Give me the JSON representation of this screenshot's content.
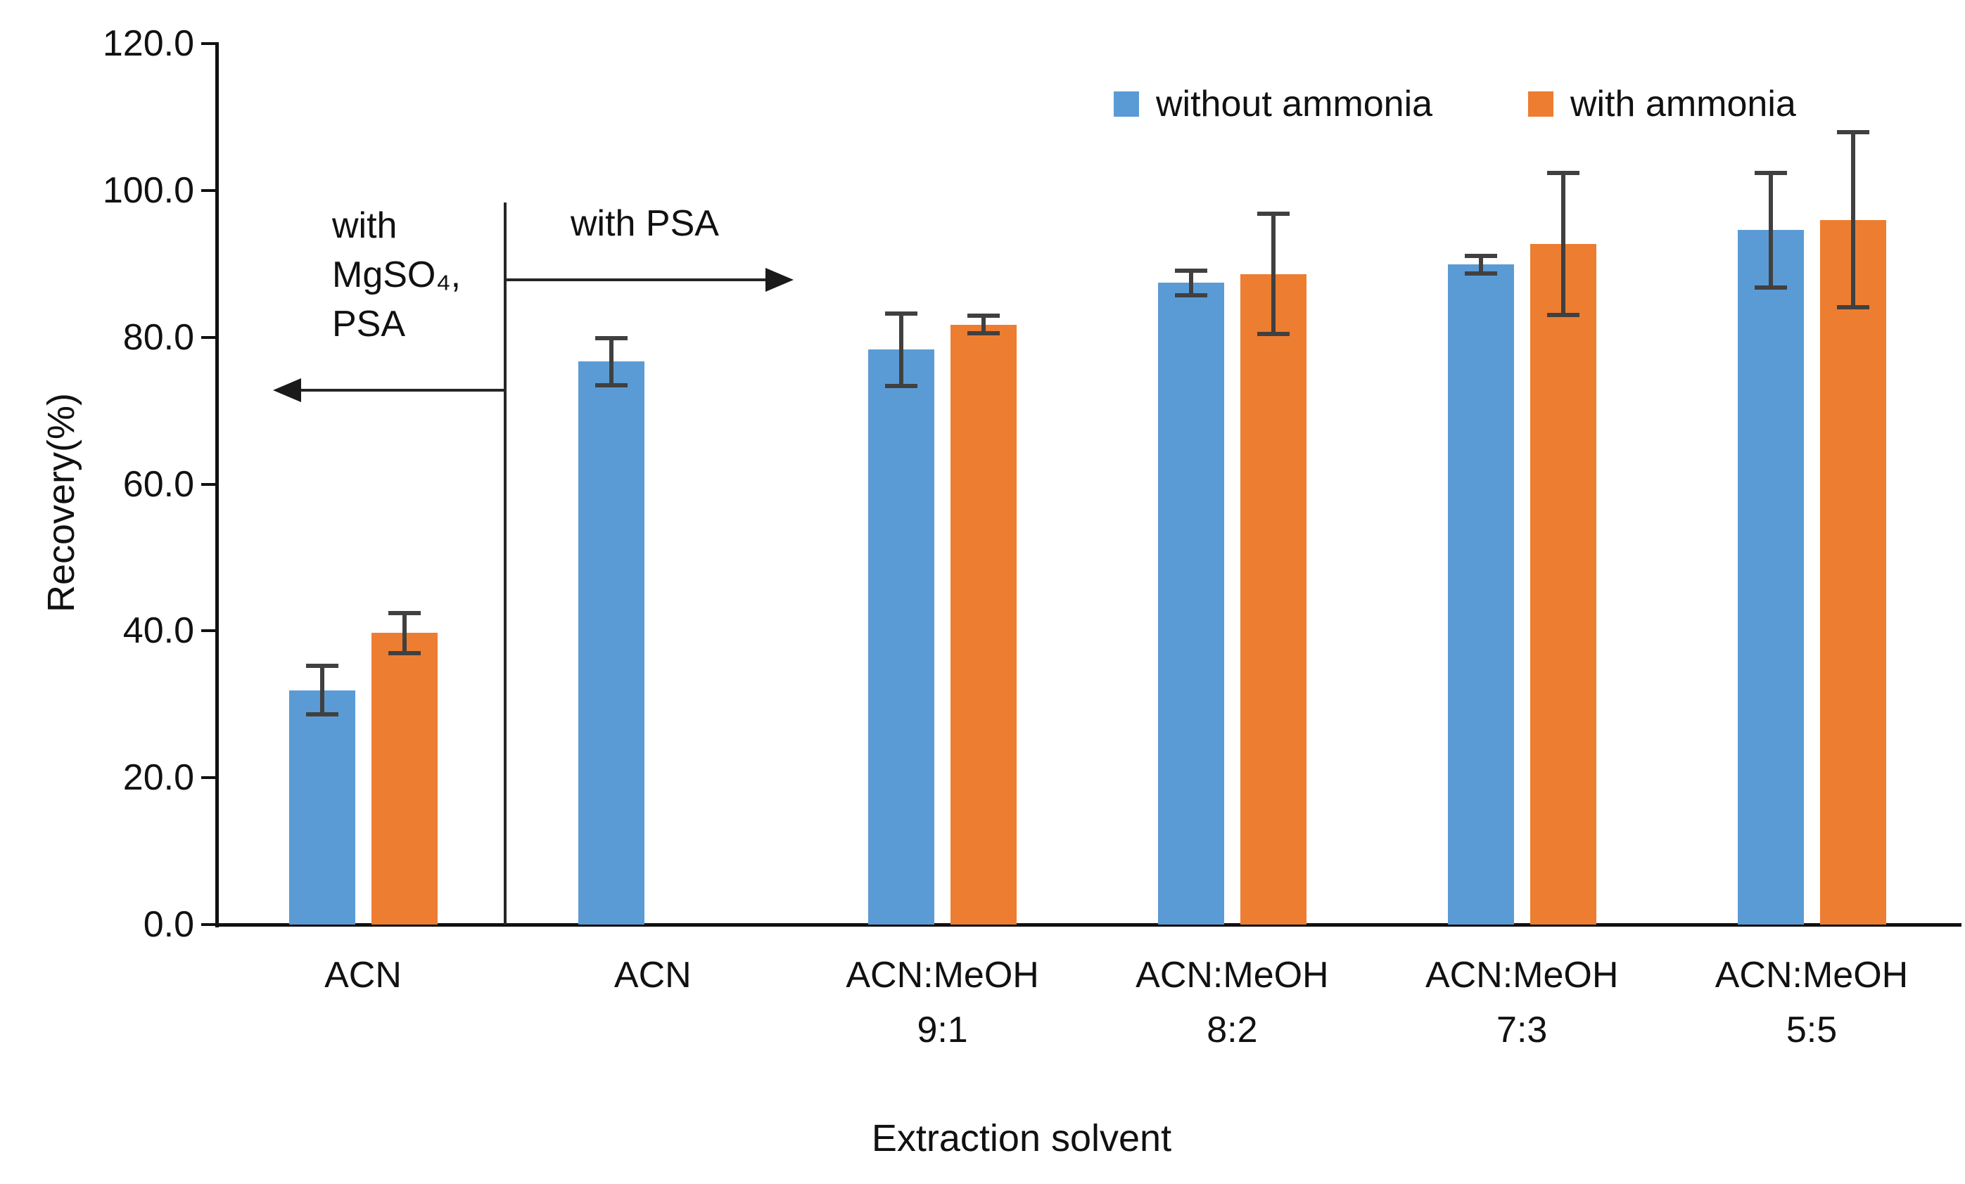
{
  "chart_data": {
    "type": "bar",
    "title": "",
    "xlabel": "Extraction solvent",
    "ylabel": "Recovery(%)",
    "ylim": [
      0,
      120
    ],
    "ytick_step": 20,
    "ytick_labels": [
      "0.0",
      "20.0",
      "40.0",
      "60.0",
      "80.0",
      "100.0",
      "120.0"
    ],
    "grid": false,
    "legend_position": "top-right",
    "categories": [
      {
        "line1": "ACN",
        "line2": ""
      },
      {
        "line1": "ACN",
        "line2": ""
      },
      {
        "line1": "ACN:MeOH",
        "line2": "9:1"
      },
      {
        "line1": "ACN:MeOH",
        "line2": "8:2"
      },
      {
        "line1": "ACN:MeOH",
        "line2": "7:3"
      },
      {
        "line1": "ACN:MeOH",
        "line2": "5:5"
      }
    ],
    "series": [
      {
        "name": "without ammonia",
        "color": "#5b9bd5",
        "values": [
          31.9,
          76.7,
          78.3,
          87.4,
          89.9,
          94.6
        ],
        "errors": [
          3.3,
          3.2,
          4.9,
          1.7,
          1.2,
          7.8
        ]
      },
      {
        "name": "with ammonia",
        "color": "#ed7d31",
        "values": [
          39.7,
          null,
          81.7,
          88.6,
          92.7,
          96.0
        ],
        "errors": [
          2.7,
          null,
          1.2,
          8.2,
          9.7,
          11.9
        ]
      }
    ],
    "error_bar_color": "#404040",
    "annotations": {
      "left_region_lines": "with\nMgSO₄,\nPSA",
      "right_region_label": "with PSA"
    }
  }
}
